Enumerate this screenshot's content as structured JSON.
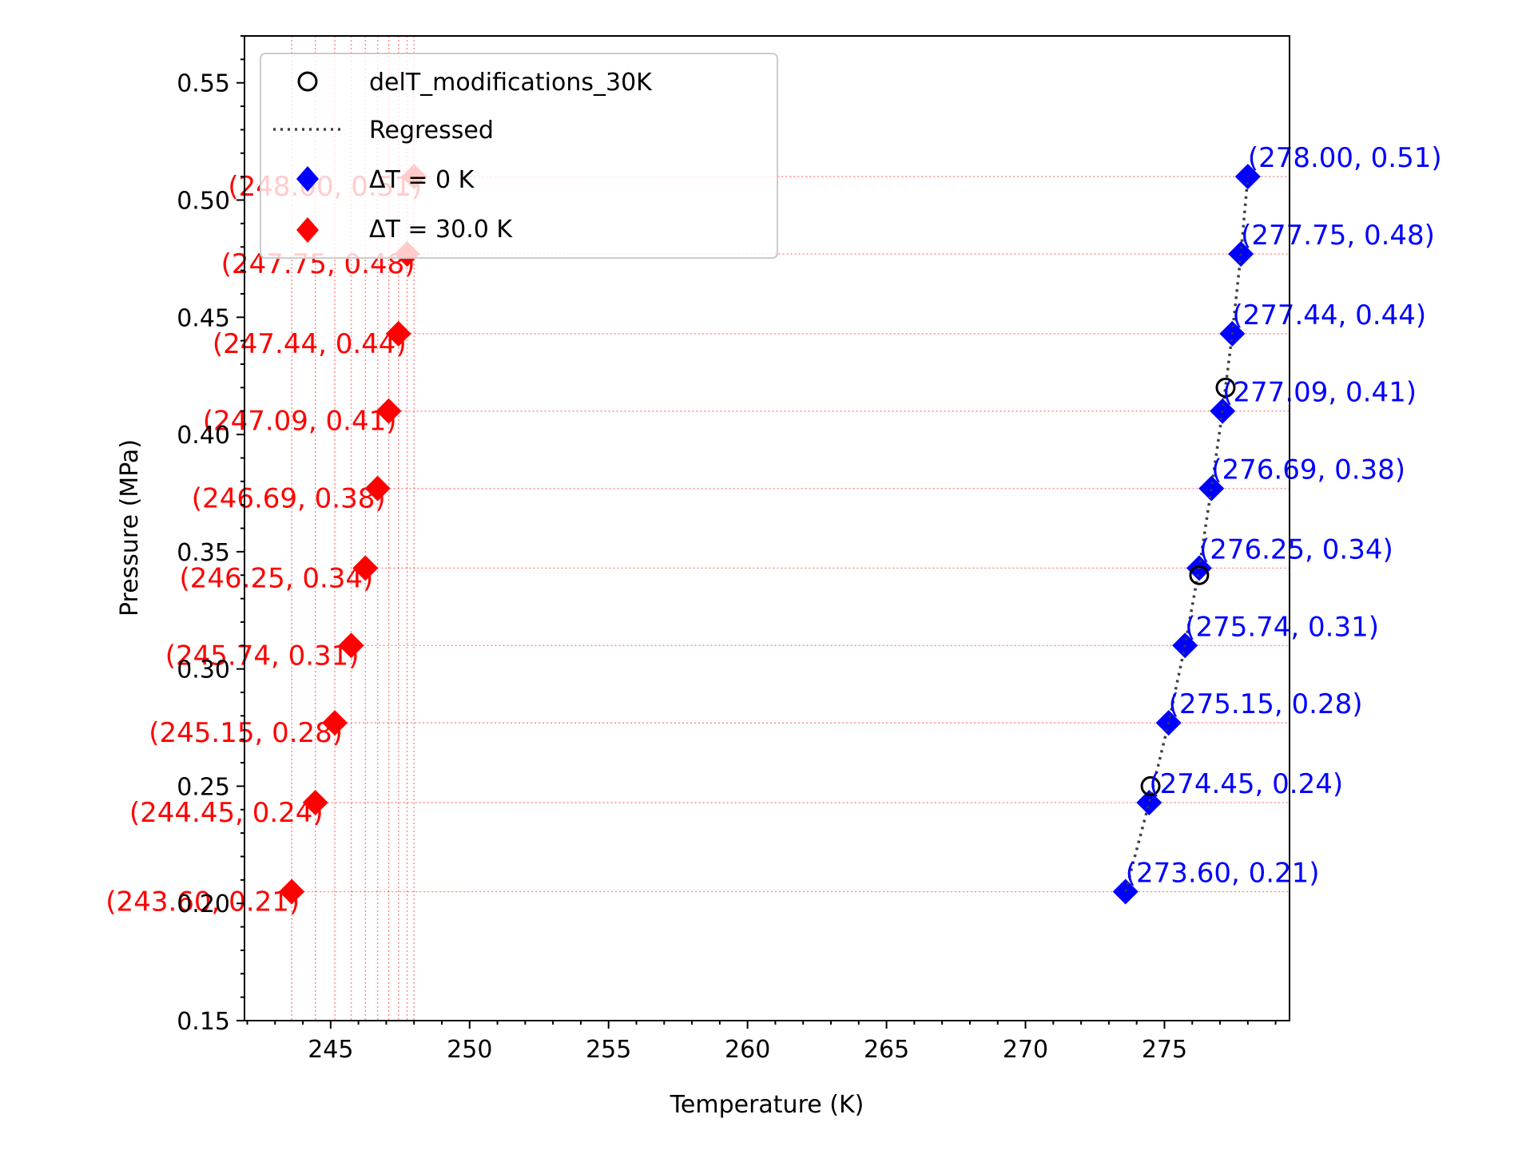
{
  "chart_data": {
    "type": "scatter",
    "xlabel": "Temperature (K)",
    "ylabel": "Pressure (MPa)",
    "xlim": [
      241.9,
      279.5
    ],
    "ylim": [
      0.15,
      0.57
    ],
    "x_ticks": [
      245,
      250,
      255,
      260,
      265,
      270,
      275
    ],
    "x_tick_labels": [
      "245",
      "250",
      "255",
      "260",
      "265",
      "270",
      "275"
    ],
    "y_ticks": [
      0.15,
      0.2,
      0.25,
      0.3,
      0.35,
      0.4,
      0.45,
      0.5,
      0.55
    ],
    "y_tick_labels": [
      "0.15",
      "0.20",
      "0.25",
      "0.30",
      "0.35",
      "0.40",
      "0.45",
      "0.50",
      "0.55"
    ],
    "grid": "dotted reference lines at ΔT = 30.0 K points",
    "legend_position": "top-left",
    "series": [
      {
        "name": "delT_modifications_30K",
        "marker": "open-circle",
        "color": "#000000",
        "x": [
          274.5,
          276.25,
          277.2
        ],
        "y": [
          0.25,
          0.34,
          0.42
        ]
      },
      {
        "name": "Regressed",
        "style": "dotted-line",
        "color": "#404040",
        "x": [
          273.6,
          274.45,
          275.15,
          275.74,
          276.25,
          276.69,
          277.09,
          277.44,
          277.75,
          278.0
        ],
        "y": [
          0.205,
          0.243,
          0.277,
          0.31,
          0.343,
          0.377,
          0.41,
          0.443,
          0.477,
          0.51
        ]
      },
      {
        "name": "ΔT = 0 K",
        "marker": "diamond",
        "color": "#0000ff",
        "x": [
          273.6,
          274.45,
          275.15,
          275.74,
          276.25,
          276.69,
          277.09,
          277.44,
          277.75,
          278.0
        ],
        "y": [
          0.205,
          0.243,
          0.277,
          0.31,
          0.343,
          0.377,
          0.41,
          0.443,
          0.477,
          0.51
        ],
        "labels": [
          "(273.60, 0.21)",
          "(274.45, 0.24)",
          "(275.15, 0.28)",
          "(275.74, 0.31)",
          "(276.25, 0.34)",
          "(276.69, 0.38)",
          "(277.09, 0.41)",
          "(277.44, 0.44)",
          "(277.75, 0.48)",
          "(278.00, 0.51)"
        ]
      },
      {
        "name": "ΔT = 30.0 K",
        "marker": "diamond",
        "color": "#ff0000",
        "x": [
          243.6,
          244.45,
          245.15,
          245.74,
          246.25,
          246.69,
          247.09,
          247.44,
          247.75,
          248.0
        ],
        "y": [
          0.205,
          0.243,
          0.277,
          0.31,
          0.343,
          0.377,
          0.41,
          0.443,
          0.477,
          0.51
        ],
        "labels": [
          "(243.60, 0.21)",
          "(244.45, 0.24)",
          "(245.15, 0.28)",
          "(245.74, 0.31)",
          "(246.25, 0.34)",
          "(246.69, 0.38)",
          "(247.09, 0.41)",
          "(247.44, 0.44)",
          "(247.75, 0.48)",
          "(248.00, 0.51)"
        ]
      }
    ]
  }
}
